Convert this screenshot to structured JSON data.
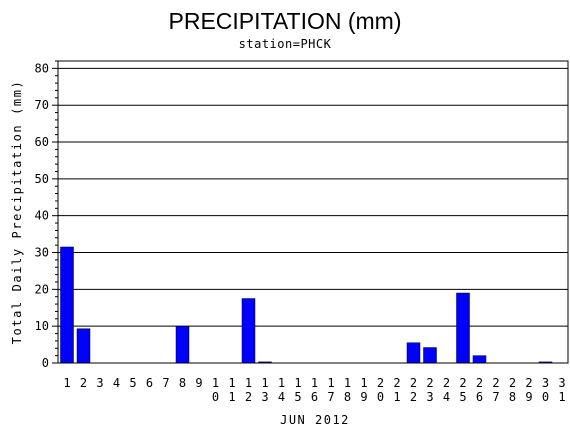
{
  "chart_data": {
    "type": "bar",
    "title": "PRECIPITATION (mm)",
    "subtitle": "station=PHCK",
    "ylabel": "Total Daily Precipitation (mm)",
    "xlabel": "JUN 2012",
    "ylim": [
      0,
      82
    ],
    "yticks": [
      0,
      10,
      20,
      30,
      40,
      50,
      60,
      70,
      80
    ],
    "grid": true,
    "categories": [
      "1",
      "2",
      "3",
      "4",
      "5",
      "6",
      "7",
      "8",
      "9",
      "10",
      "11",
      "12",
      "13",
      "14",
      "15",
      "16",
      "17",
      "18",
      "19",
      "20",
      "21",
      "22",
      "23",
      "24",
      "25",
      "26",
      "27",
      "28",
      "29",
      "30",
      "31"
    ],
    "values": [
      31.5,
      9.3,
      0,
      0,
      0,
      0,
      0,
      10,
      0,
      0,
      0,
      17.5,
      0.3,
      0,
      0,
      0,
      0,
      0,
      0,
      0,
      0,
      5.5,
      4.2,
      0,
      19,
      2,
      0,
      0,
      0,
      0.3,
      0
    ],
    "bar_color": "#0000ff"
  }
}
